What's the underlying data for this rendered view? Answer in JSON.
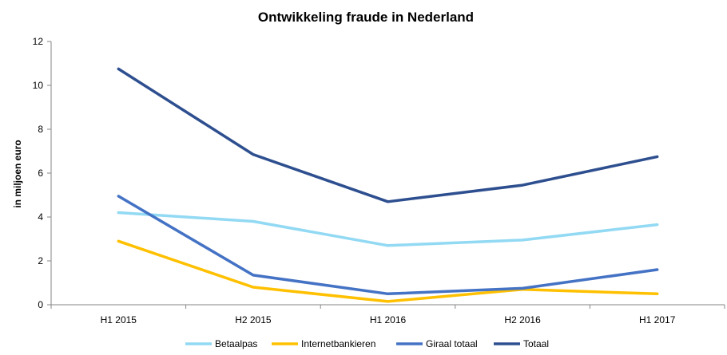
{
  "chart_data": {
    "type": "line",
    "title": "Ontwikkeling fraude in Nederland",
    "xlabel": "",
    "ylabel": "in miljoen euro",
    "categories": [
      "H1 2015",
      "H2 2015",
      "H1 2016",
      "H2 2016",
      "H1 2017"
    ],
    "ylim": [
      0,
      12
    ],
    "yticks": [
      "0",
      "2",
      "4",
      "6",
      "8",
      "10",
      "12"
    ],
    "grid": false,
    "legend_position": "bottom",
    "series": [
      {
        "name": "Betaalpas",
        "color": "#92D9F3",
        "values": [
          4.2,
          3.8,
          2.7,
          2.95,
          3.65
        ]
      },
      {
        "name": "Internetbankieren",
        "color": "#FFC000",
        "values": [
          2.9,
          0.8,
          0.15,
          0.7,
          0.5
        ]
      },
      {
        "name": "Giraal totaal",
        "color": "#4472C4",
        "values": [
          4.95,
          1.35,
          0.5,
          0.75,
          1.6
        ]
      },
      {
        "name": "Totaal",
        "color": "#2E4F8F",
        "values": [
          10.75,
          6.85,
          4.7,
          5.45,
          6.75
        ]
      }
    ]
  }
}
